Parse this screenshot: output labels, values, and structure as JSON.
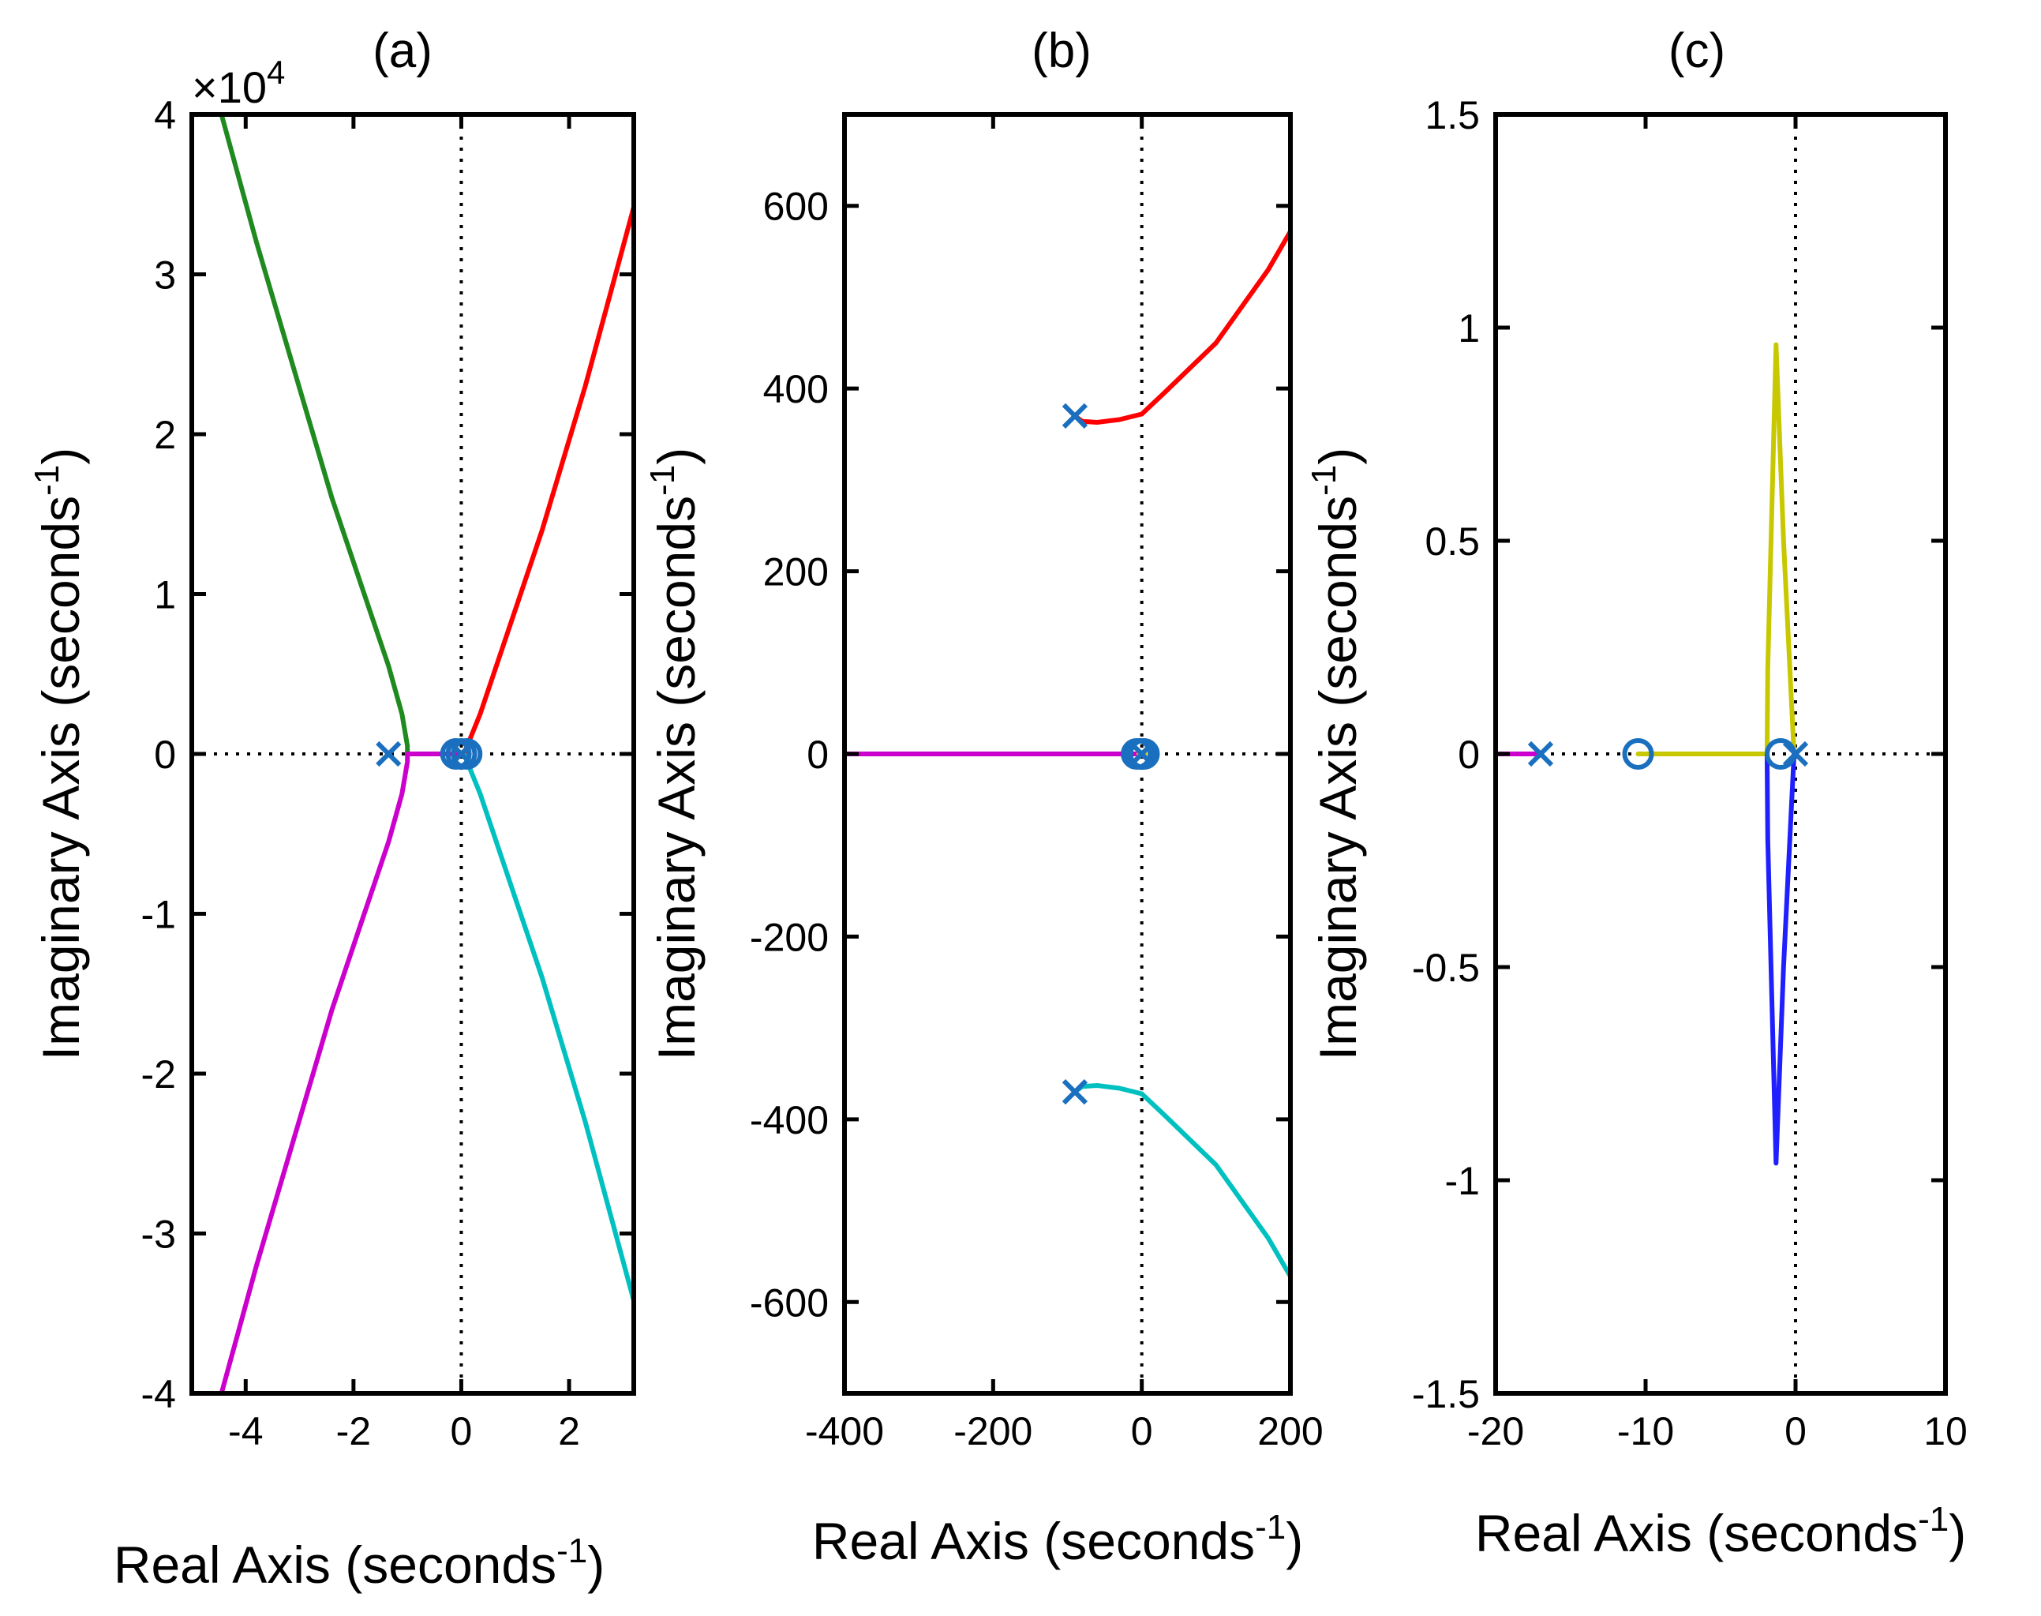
{
  "chart_data": [
    {
      "id": "a",
      "type": "line",
      "title": "(a)",
      "xlabel": "Real Axis (seconds",
      "ylabel": "Imaginary Axis (seconds",
      "unit_exponent": "-1",
      "xlim": [
        -5,
        3.2
      ],
      "ylim": [
        -40000,
        40000
      ],
      "xticks": [
        -4,
        -2,
        0,
        2
      ],
      "xtick_labels": [
        "-4",
        "-2",
        "0",
        "2"
      ],
      "yticks": [
        -40000,
        -30000,
        -20000,
        -10000,
        0,
        10000,
        20000,
        30000,
        40000
      ],
      "ytick_labels": [
        "-4",
        "-3",
        "-2",
        "-1",
        "0",
        "1",
        "2",
        "3",
        "4"
      ],
      "y_multiplier": {
        "base": "×10",
        "exponent": "4"
      },
      "series": [
        {
          "color": "#1f8a1f",
          "points": [
            [
              -4.45,
              40000
            ],
            [
              -3.8,
              32000
            ],
            [
              -3.1,
              24000
            ],
            [
              -2.4,
              16000
            ],
            [
              -1.8,
              10000
            ],
            [
              -1.35,
              5500
            ],
            [
              -1.1,
              2500
            ],
            [
              -1.0,
              500
            ],
            [
              -1.0,
              0
            ]
          ]
        },
        {
          "color": "#cc00cc",
          "points": [
            [
              -1.0,
              0
            ],
            [
              -1.0,
              -500
            ],
            [
              -1.1,
              -2500
            ],
            [
              -1.35,
              -5500
            ],
            [
              -1.8,
              -10000
            ],
            [
              -2.4,
              -16000
            ],
            [
              -3.1,
              -24000
            ],
            [
              -3.8,
              -32000
            ],
            [
              -4.45,
              -40000
            ]
          ]
        },
        {
          "color": "#cc00cc",
          "points": [
            [
              -1.0,
              0
            ],
            [
              0.1,
              0
            ]
          ]
        },
        {
          "color": "#ff0000",
          "points": [
            [
              0.05,
              0
            ],
            [
              0.35,
              2500
            ],
            [
              0.8,
              7000
            ],
            [
              1.5,
              14000
            ],
            [
              2.3,
              23000
            ],
            [
              3.2,
              34200
            ]
          ]
        },
        {
          "color": "#00c0c0",
          "points": [
            [
              0.05,
              0
            ],
            [
              0.35,
              -2500
            ],
            [
              0.8,
              -7000
            ],
            [
              1.5,
              -14000
            ],
            [
              2.3,
              -23000
            ],
            [
              3.2,
              -34200
            ]
          ]
        }
      ],
      "poles": [
        [
          -1.35,
          0
        ],
        [
          0.0,
          0
        ]
      ],
      "zeros": [
        [
          -0.1,
          0
        ],
        [
          0.0,
          0
        ],
        [
          0.1,
          0
        ]
      ]
    },
    {
      "id": "b",
      "type": "line",
      "title": "(b)",
      "xlabel": "Real Axis (seconds",
      "ylabel": "Imaginary Axis (seconds",
      "unit_exponent": "-1",
      "xlim": [
        -400,
        200
      ],
      "ylim": [
        -700,
        700
      ],
      "xticks": [
        -400,
        -200,
        0,
        200
      ],
      "xtick_labels": [
        "-400",
        "-200",
        "0",
        "200"
      ],
      "yticks": [
        -600,
        -400,
        -200,
        0,
        200,
        400,
        600
      ],
      "ytick_labels": [
        "-600",
        "-400",
        "-200",
        "0",
        "200",
        "400",
        "600"
      ],
      "series": [
        {
          "color": "#ff0000",
          "points": [
            [
              -90,
              370
            ],
            [
              -80,
              364
            ],
            [
              -60,
              363
            ],
            [
              -30,
              366
            ],
            [
              0,
              372
            ],
            [
              30,
              395
            ],
            [
              100,
              450
            ],
            [
              170,
              530
            ],
            [
              200,
              572
            ]
          ]
        },
        {
          "color": "#00c0c0",
          "points": [
            [
              -90,
              -370
            ],
            [
              -80,
              -364
            ],
            [
              -60,
              -363
            ],
            [
              -30,
              -366
            ],
            [
              0,
              -372
            ],
            [
              30,
              -395
            ],
            [
              100,
              -450
            ],
            [
              170,
              -530
            ],
            [
              200,
              -572
            ]
          ]
        },
        {
          "color": "#cc00cc",
          "points": [
            [
              -400,
              0
            ],
            [
              0,
              0
            ]
          ]
        },
        {
          "color": "#c8c800",
          "points": [
            [
              -4,
              0
            ],
            [
              4,
              0
            ]
          ]
        }
      ],
      "poles": [
        [
          -90,
          370
        ],
        [
          -90,
          -370
        ],
        [
          0,
          0
        ]
      ],
      "zeros": [
        [
          -7,
          0
        ],
        [
          -2,
          0
        ],
        [
          3,
          0
        ]
      ]
    },
    {
      "id": "c",
      "type": "line",
      "title": "(c)",
      "xlabel": "Real Axis (seconds",
      "ylabel": "Imaginary Axis (seconds",
      "unit_exponent": "-1",
      "xlim": [
        -20,
        10
      ],
      "ylim": [
        -1.5,
        1.5
      ],
      "xticks": [
        -20,
        -10,
        0,
        10
      ],
      "xtick_labels": [
        "-20",
        "-10",
        "0",
        "10"
      ],
      "yticks": [
        -1.5,
        -1,
        -0.5,
        0,
        0.5,
        1,
        1.5
      ],
      "ytick_labels": [
        "-1.5",
        "-1",
        "-0.5",
        "0",
        "0.5",
        "1",
        "1.5"
      ],
      "series": [
        {
          "color": "#cc00cc",
          "points": [
            [
              -20,
              0
            ],
            [
              -17,
              0
            ]
          ]
        },
        {
          "color": "#c8c800",
          "points": [
            [
              -10.5,
              0
            ],
            [
              -1.9,
              0
            ]
          ]
        },
        {
          "color": "#c8c800",
          "points": [
            [
              -1.9,
              0
            ],
            [
              -1.85,
              0.2
            ],
            [
              -1.3,
              0.96
            ],
            [
              -0.8,
              0.5
            ],
            [
              -0.1,
              0.0
            ]
          ]
        },
        {
          "color": "#2020ff",
          "points": [
            [
              -0.1,
              0.0
            ],
            [
              -0.8,
              -0.5
            ],
            [
              -1.3,
              -0.96
            ],
            [
              -1.85,
              -0.2
            ],
            [
              -1.9,
              0
            ]
          ]
        }
      ],
      "poles": [
        [
          -17,
          0
        ],
        [
          0,
          0
        ]
      ],
      "zeros": [
        [
          -10.5,
          0
        ],
        [
          -1.0,
          0
        ]
      ]
    }
  ]
}
